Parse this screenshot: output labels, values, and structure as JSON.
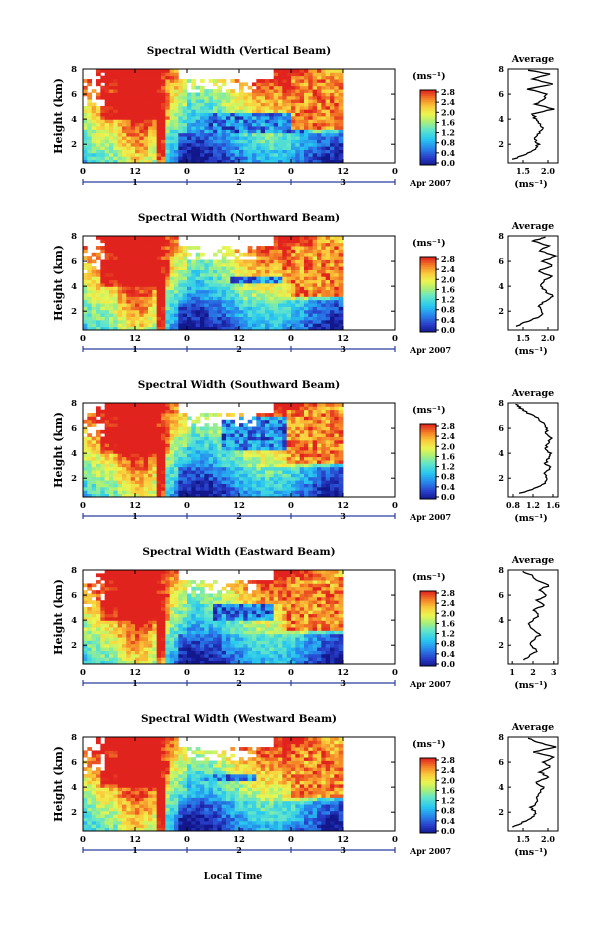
{
  "figure": {
    "xlabel": "Local Time",
    "month_label": "Apr 2007",
    "ylabel": "Height (km)",
    "unit_label": "(ms⁻¹)",
    "avg_title": "Average"
  },
  "chart_data": [
    {
      "type": "heatmap",
      "title": "Spectral Width (Vertical Beam)",
      "x_hour_ticks": [
        "0",
        "12",
        "0",
        "12",
        "0",
        "12",
        "0"
      ],
      "x_day_ticks": [
        "1",
        "2",
        "3"
      ],
      "xlim_hours": [
        0,
        72
      ],
      "data_end_hour": 60,
      "ylim_km": [
        0.5,
        8
      ],
      "y_ticks": [
        "2",
        "4",
        "6",
        "8"
      ],
      "colorbar_ticks": [
        "0.0",
        "0.4",
        "0.8",
        "1.2",
        "1.6",
        "2.0",
        "2.4",
        "2.8"
      ],
      "colorbar_range": [
        0.0,
        2.8
      ],
      "features": {
        "red_spike_hour": 18,
        "red_onset_hour": 48,
        "dark_band": [
          28,
          52
        ],
        "dark_top_km": 4.6,
        "dark_bottom_km": 3.0
      },
      "average_profile": {
        "x_ticks": [
          "1.5",
          "2.0"
        ],
        "xlim": [
          1.2,
          2.2
        ],
        "ylim": [
          0.5,
          8
        ],
        "y_ticks": [
          "2",
          "4",
          "6",
          "8"
        ],
        "xlabel": "(ms⁻¹)",
        "height_km": [
          0.8,
          1.2,
          1.6,
          2.0,
          2.4,
          2.8,
          3.2,
          3.6,
          4.0,
          4.4,
          4.8,
          5.2,
          5.6,
          6.0,
          6.4,
          6.8,
          7.2,
          7.6,
          7.9
        ],
        "values": [
          1.3,
          1.55,
          1.75,
          1.8,
          1.72,
          1.78,
          1.9,
          1.85,
          1.75,
          1.7,
          2.1,
          1.75,
          1.9,
          2.0,
          1.6,
          2.1,
          1.7,
          2.05,
          1.6
        ]
      }
    },
    {
      "type": "heatmap",
      "title": "Spectral Width (Northward Beam)",
      "x_hour_ticks": [
        "0",
        "12",
        "0",
        "12",
        "0",
        "12",
        "0"
      ],
      "x_day_ticks": [
        "1",
        "2",
        "3"
      ],
      "xlim_hours": [
        0,
        72
      ],
      "data_end_hour": 60,
      "ylim_km": [
        0.5,
        8
      ],
      "y_ticks": [
        "2",
        "4",
        "6",
        "8"
      ],
      "colorbar_ticks": [
        "0.0",
        "0.4",
        "0.8",
        "1.2",
        "1.6",
        "2.0",
        "2.4",
        "2.8"
      ],
      "colorbar_range": [
        0.0,
        2.8
      ],
      "features": {
        "red_spike_hour": 18,
        "red_onset_hour": 48,
        "dark_band": [
          34,
          46
        ],
        "dark_top_km": 4.8,
        "dark_bottom_km": 4.2
      },
      "average_profile": {
        "x_ticks": [
          "1.5",
          "2.0"
        ],
        "xlim": [
          1.2,
          2.2
        ],
        "ylim": [
          0.5,
          8
        ],
        "y_ticks": [
          "2",
          "4",
          "6",
          "8"
        ],
        "xlabel": "(ms⁻¹)",
        "height_km": [
          0.8,
          1.2,
          1.6,
          2.0,
          2.4,
          2.8,
          3.2,
          3.6,
          4.0,
          4.4,
          4.8,
          5.2,
          5.6,
          6.0,
          6.4,
          6.8,
          7.2,
          7.6,
          7.9
        ],
        "values": [
          1.35,
          1.6,
          1.85,
          1.9,
          1.8,
          1.95,
          2.1,
          1.95,
          1.85,
          1.9,
          2.05,
          1.8,
          2.1,
          1.9,
          2.15,
          1.85,
          2.0,
          1.7,
          1.95
        ]
      }
    },
    {
      "type": "heatmap",
      "title": "Spectral Width (Southward Beam)",
      "x_hour_ticks": [
        "0",
        "12",
        "0",
        "12",
        "0",
        "12",
        "0"
      ],
      "x_day_ticks": [
        "1",
        "2",
        "3"
      ],
      "xlim_hours": [
        0,
        72
      ],
      "data_end_hour": 60,
      "ylim_km": [
        0.5,
        8
      ],
      "y_ticks": [
        "2",
        "4",
        "6",
        "8"
      ],
      "colorbar_ticks": [
        "0.0",
        "0.4",
        "0.8",
        "1.2",
        "1.6",
        "2.0",
        "2.4",
        "2.8"
      ],
      "colorbar_range": [
        0.0,
        2.8
      ],
      "features": {
        "red_spike_hour": 18,
        "red_onset_hour": 47,
        "dark_band": [
          32,
          48
        ],
        "dark_top_km": 6.8,
        "dark_bottom_km": 4.2
      },
      "average_profile": {
        "x_ticks": [
          "0.8",
          "1.2",
          "1.6"
        ],
        "xlim": [
          0.7,
          1.7
        ],
        "ylim": [
          0.5,
          8
        ],
        "y_ticks": [
          "2",
          "4",
          "6",
          "8"
        ],
        "xlabel": "(ms⁻¹)",
        "height_km": [
          0.8,
          1.2,
          1.6,
          2.0,
          2.4,
          2.8,
          3.2,
          3.6,
          4.0,
          4.4,
          4.8,
          5.2,
          5.6,
          6.0,
          6.4,
          6.8,
          7.2,
          7.6,
          7.9
        ],
        "values": [
          0.95,
          1.25,
          1.45,
          1.5,
          1.4,
          1.55,
          1.45,
          1.5,
          1.55,
          1.45,
          1.5,
          1.55,
          1.45,
          1.5,
          1.4,
          1.3,
          1.1,
          0.95,
          0.85
        ]
      }
    },
    {
      "type": "heatmap",
      "title": "Spectral Width (Eastward Beam)",
      "x_hour_ticks": [
        "0",
        "12",
        "0",
        "12",
        "0",
        "12",
        "0"
      ],
      "x_day_ticks": [
        "1",
        "2",
        "3"
      ],
      "xlim_hours": [
        0,
        72
      ],
      "data_end_hour": 60,
      "ylim_km": [
        0.5,
        8
      ],
      "y_ticks": [
        "2",
        "4",
        "6",
        "8"
      ],
      "colorbar_ticks": [
        "0.0",
        "0.4",
        "0.8",
        "1.2",
        "1.6",
        "2.0",
        "2.4",
        "2.8"
      ],
      "colorbar_range": [
        0.0,
        2.8
      ],
      "features": {
        "red_spike_hour": 18,
        "red_onset_hour": 47,
        "dark_band": [
          30,
          44
        ],
        "dark_top_km": 5.2,
        "dark_bottom_km": 4.0
      },
      "average_profile": {
        "x_ticks": [
          "1",
          "2",
          "3"
        ],
        "xlim": [
          0.8,
          3.2
        ],
        "ylim": [
          0.5,
          8
        ],
        "y_ticks": [
          "2",
          "4",
          "6",
          "8"
        ],
        "xlabel": "(ms⁻¹)",
        "height_km": [
          0.8,
          1.2,
          1.6,
          2.0,
          2.4,
          2.8,
          3.2,
          3.6,
          4.0,
          4.4,
          4.8,
          5.2,
          5.6,
          6.0,
          6.4,
          6.8,
          7.2,
          7.6,
          7.9
        ],
        "values": [
          1.5,
          1.9,
          2.2,
          1.9,
          2.0,
          2.3,
          2.1,
          1.8,
          2.0,
          2.3,
          2.0,
          2.6,
          2.2,
          2.7,
          2.3,
          2.8,
          2.2,
          1.9,
          1.5
        ]
      }
    },
    {
      "type": "heatmap",
      "title": "Spectral Width (Westward Beam)",
      "x_hour_ticks": [
        "0",
        "12",
        "0",
        "12",
        "0",
        "12",
        "0"
      ],
      "x_day_ticks": [
        "1",
        "2",
        "3"
      ],
      "xlim_hours": [
        0,
        72
      ],
      "data_end_hour": 60,
      "ylim_km": [
        0.5,
        8
      ],
      "y_ticks": [
        "2",
        "4",
        "6",
        "8"
      ],
      "colorbar_ticks": [
        "0.0",
        "0.4",
        "0.8",
        "1.2",
        "1.6",
        "2.0",
        "2.4",
        "2.8"
      ],
      "colorbar_range": [
        0.0,
        2.8
      ],
      "features": {
        "red_spike_hour": 18,
        "red_onset_hour": 48,
        "dark_band": [
          28,
          40
        ],
        "dark_top_km": 5.0,
        "dark_bottom_km": 4.4
      },
      "average_profile": {
        "x_ticks": [
          "1.5",
          "2.0"
        ],
        "xlim": [
          1.2,
          2.2
        ],
        "ylim": [
          0.5,
          8
        ],
        "y_ticks": [
          "2",
          "4",
          "6",
          "8"
        ],
        "xlabel": "(ms⁻¹)",
        "height_km": [
          0.8,
          1.2,
          1.6,
          2.0,
          2.4,
          2.8,
          3.2,
          3.6,
          4.0,
          4.4,
          4.8,
          5.2,
          5.6,
          6.0,
          6.4,
          6.8,
          7.2,
          7.6,
          7.9
        ],
        "values": [
          1.3,
          1.5,
          1.7,
          1.75,
          1.65,
          1.8,
          1.75,
          1.85,
          1.9,
          1.75,
          2.0,
          1.85,
          2.05,
          1.9,
          2.1,
          1.7,
          2.15,
          1.8,
          1.6
        ]
      }
    }
  ]
}
